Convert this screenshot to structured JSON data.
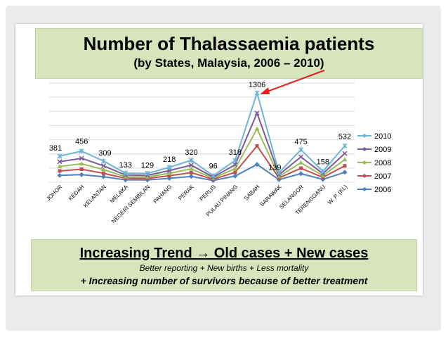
{
  "slide": {
    "title": "Number of Thalassaemia patients",
    "subtitle": "(by States, Malaysia, 2006 – 2010)",
    "trend_title": "Increasing Trend  → Old cases + New cases",
    "trend_line1": "Better reporting + New births + Less mortality",
    "trend_line2": "+ Increasing number of survivors because of better treatment"
  },
  "colors": {
    "2010": "#6fb4d8",
    "2009": "#7a5a9a",
    "2008": "#9bbb59",
    "2007": "#c0504d",
    "2006": "#4f81bd",
    "arrow": "#e02020",
    "grid": "#d9d9d9"
  },
  "chart_data": {
    "type": "line",
    "categories": [
      "JOHOR",
      "KEDAH",
      "KELANTAN",
      "MELAKA",
      "NEGERI SEMBILAN",
      "PAHANG",
      "PERAK",
      "PERLIS",
      "PULAU PINANG",
      "SABAH",
      "SARAWAK",
      "SELANGOR",
      "TERENGGANU",
      "W. P. (KL)"
    ],
    "data_labels": [
      "381",
      "456",
      "309",
      "133",
      "129",
      "218",
      "320",
      "96",
      "318",
      "1306",
      "139",
      "475",
      "158",
      "532"
    ],
    "ylim": [
      0,
      1450
    ],
    "grid": true,
    "legend": "right",
    "series": [
      {
        "name": "2010",
        "values": [
          381,
          456,
          309,
          133,
          129,
          218,
          320,
          96,
          318,
          1306,
          139,
          475,
          158,
          532
        ]
      },
      {
        "name": "2009",
        "values": [
          300,
          350,
          240,
          105,
          100,
          170,
          250,
          75,
          255,
          1010,
          110,
          370,
          125,
          420
        ]
      },
      {
        "name": "2008",
        "values": [
          230,
          270,
          185,
          80,
          78,
          130,
          195,
          58,
          200,
          780,
          85,
          285,
          97,
          330
        ]
      },
      {
        "name": "2007",
        "values": [
          165,
          190,
          130,
          58,
          55,
          95,
          140,
          42,
          145,
          530,
          62,
          205,
          70,
          240
        ]
      },
      {
        "name": "2006",
        "values": [
          100,
          110,
          80,
          35,
          33,
          57,
          85,
          25,
          90,
          260,
          38,
          125,
          42,
          145
        ]
      }
    ]
  }
}
